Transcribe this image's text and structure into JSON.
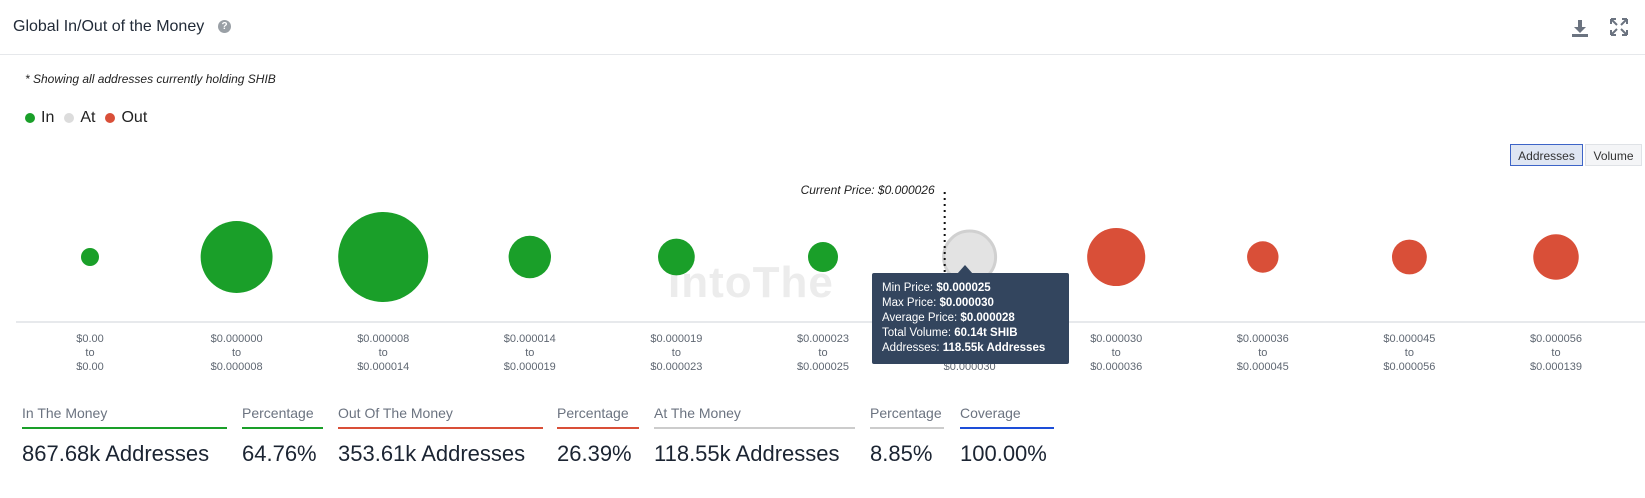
{
  "header": {
    "title": "Global In/Out of the Money",
    "help_icon": "question-circle-icon",
    "download_icon": "download-icon",
    "fullscreen_icon": "fullscreen-icon"
  },
  "note": "* Showing all addresses currently holding SHIB",
  "legend": [
    {
      "label": "In",
      "color": "#1a9f29"
    },
    {
      "label": "At",
      "color": "#dcdcdc"
    },
    {
      "label": "Out",
      "color": "#d94f38"
    }
  ],
  "toggle": {
    "addresses_label": "Addresses",
    "volume_label": "Volume",
    "active": "Addresses"
  },
  "watermark": "IntoThe",
  "chart_data": {
    "type": "bubble",
    "current_price_label": "Current Price: $0.000026",
    "current_price_index": 6,
    "y_label": "",
    "categories": [
      {
        "from": "$0.00",
        "to": "$0.00",
        "status": "In",
        "size": 0.05
      },
      {
        "from": "$0.000000",
        "to": "$0.000008",
        "status": "In",
        "size": 1.15
      },
      {
        "from": "$0.000008",
        "to": "$0.000014",
        "status": "In",
        "size": 1.8
      },
      {
        "from": "$0.000014",
        "to": "$0.000019",
        "status": "In",
        "size": 0.4
      },
      {
        "from": "$0.000019",
        "to": "$0.000023",
        "status": "In",
        "size": 0.3
      },
      {
        "from": "$0.000023",
        "to": "$0.000025",
        "status": "In",
        "size": 0.2
      },
      {
        "from": "$0.000025",
        "to": "$0.000030",
        "status": "At",
        "size": 0.6
      },
      {
        "from": "$0.000030",
        "to": "$0.000036",
        "status": "Out",
        "size": 0.75
      },
      {
        "from": "$0.000036",
        "to": "$0.000045",
        "status": "Out",
        "size": 0.22
      },
      {
        "from": "$0.000045",
        "to": "$0.000056",
        "status": "Out",
        "size": 0.27
      },
      {
        "from": "$0.000056",
        "to": "$0.000139",
        "status": "Out",
        "size": 0.46
      }
    ],
    "range_joiner": "to",
    "colors": {
      "In": "#1a9f29",
      "At": "#e3e3e3",
      "Out": "#d94f38"
    }
  },
  "tooltip": {
    "min_price_label": "Min Price:",
    "min_price": "$0.000025",
    "max_price_label": "Max Price:",
    "max_price": "$0.000030",
    "avg_price_label": "Average Price:",
    "avg_price": "$0.000028",
    "volume_label": "Total Volume:",
    "volume": "60.14t SHIB",
    "addresses_label": "Addresses:",
    "addresses": "118.55k Addresses"
  },
  "stats": [
    {
      "label": "In The Money",
      "value": "867.68k Addresses",
      "color": "#1a9f29"
    },
    {
      "label": "Percentage",
      "value": "64.76%",
      "color": "#1a9f29"
    },
    {
      "label": "Out Of The Money",
      "value": "353.61k Addresses",
      "color": "#d94f38"
    },
    {
      "label": "Percentage",
      "value": "26.39%",
      "color": "#d94f38"
    },
    {
      "label": "At The Money",
      "value": "118.55k Addresses",
      "color": "#cccccc"
    },
    {
      "label": "Percentage",
      "value": "8.85%",
      "color": "#cccccc"
    },
    {
      "label": "Coverage",
      "value": "100.00%",
      "color": "#1d4ed8"
    }
  ]
}
